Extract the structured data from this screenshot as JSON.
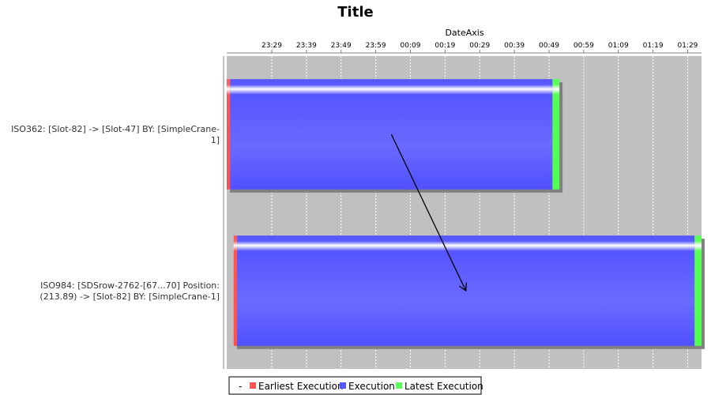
{
  "chart_data": {
    "type": "gantt",
    "title": "Title",
    "xlabel": "DateAxis",
    "ticks": [
      "23:29",
      "23:39",
      "23:49",
      "23:59",
      "00:09",
      "00:19",
      "00:29",
      "00:39",
      "00:49",
      "00:59",
      "01:09",
      "01:19",
      "01:29"
    ],
    "xlim": [
      "23:16",
      "01:33"
    ],
    "tasks": [
      {
        "label_lines": [
          "ISO362: [Slot-82] -> [Slot-47] BY: [SimpleCrane-",
          "1]"
        ],
        "earliest": [
          "23:16",
          "23:17"
        ],
        "execution": [
          "23:17",
          "00:50"
        ],
        "latest": [
          "00:50",
          "00:52"
        ]
      },
      {
        "label_lines": [
          "ISO984: [SDSrow-2762-[67...70]  Position:",
          "(213.89) -> [Slot-82] BY: [SimpleCrane-1]"
        ],
        "earliest": [
          "23:18",
          "23:19"
        ],
        "execution": [
          "23:19",
          "01:31"
        ],
        "latest": [
          "01:31",
          "01:33"
        ]
      }
    ],
    "arrow": {
      "from_task": 0,
      "to_task": 1
    },
    "legend": {
      "position": "bottom",
      "prefix": "-",
      "items": [
        {
          "label": "Earliest Execution",
          "color": "#ff5555"
        },
        {
          "label": "Execution",
          "color": "#5555ff"
        },
        {
          "label": "Latest Execution",
          "color": "#55ff55"
        }
      ]
    },
    "colors": {
      "plot_background": "#c0c0c0",
      "gridline": "#ffffff",
      "shadow": "#808080"
    }
  }
}
